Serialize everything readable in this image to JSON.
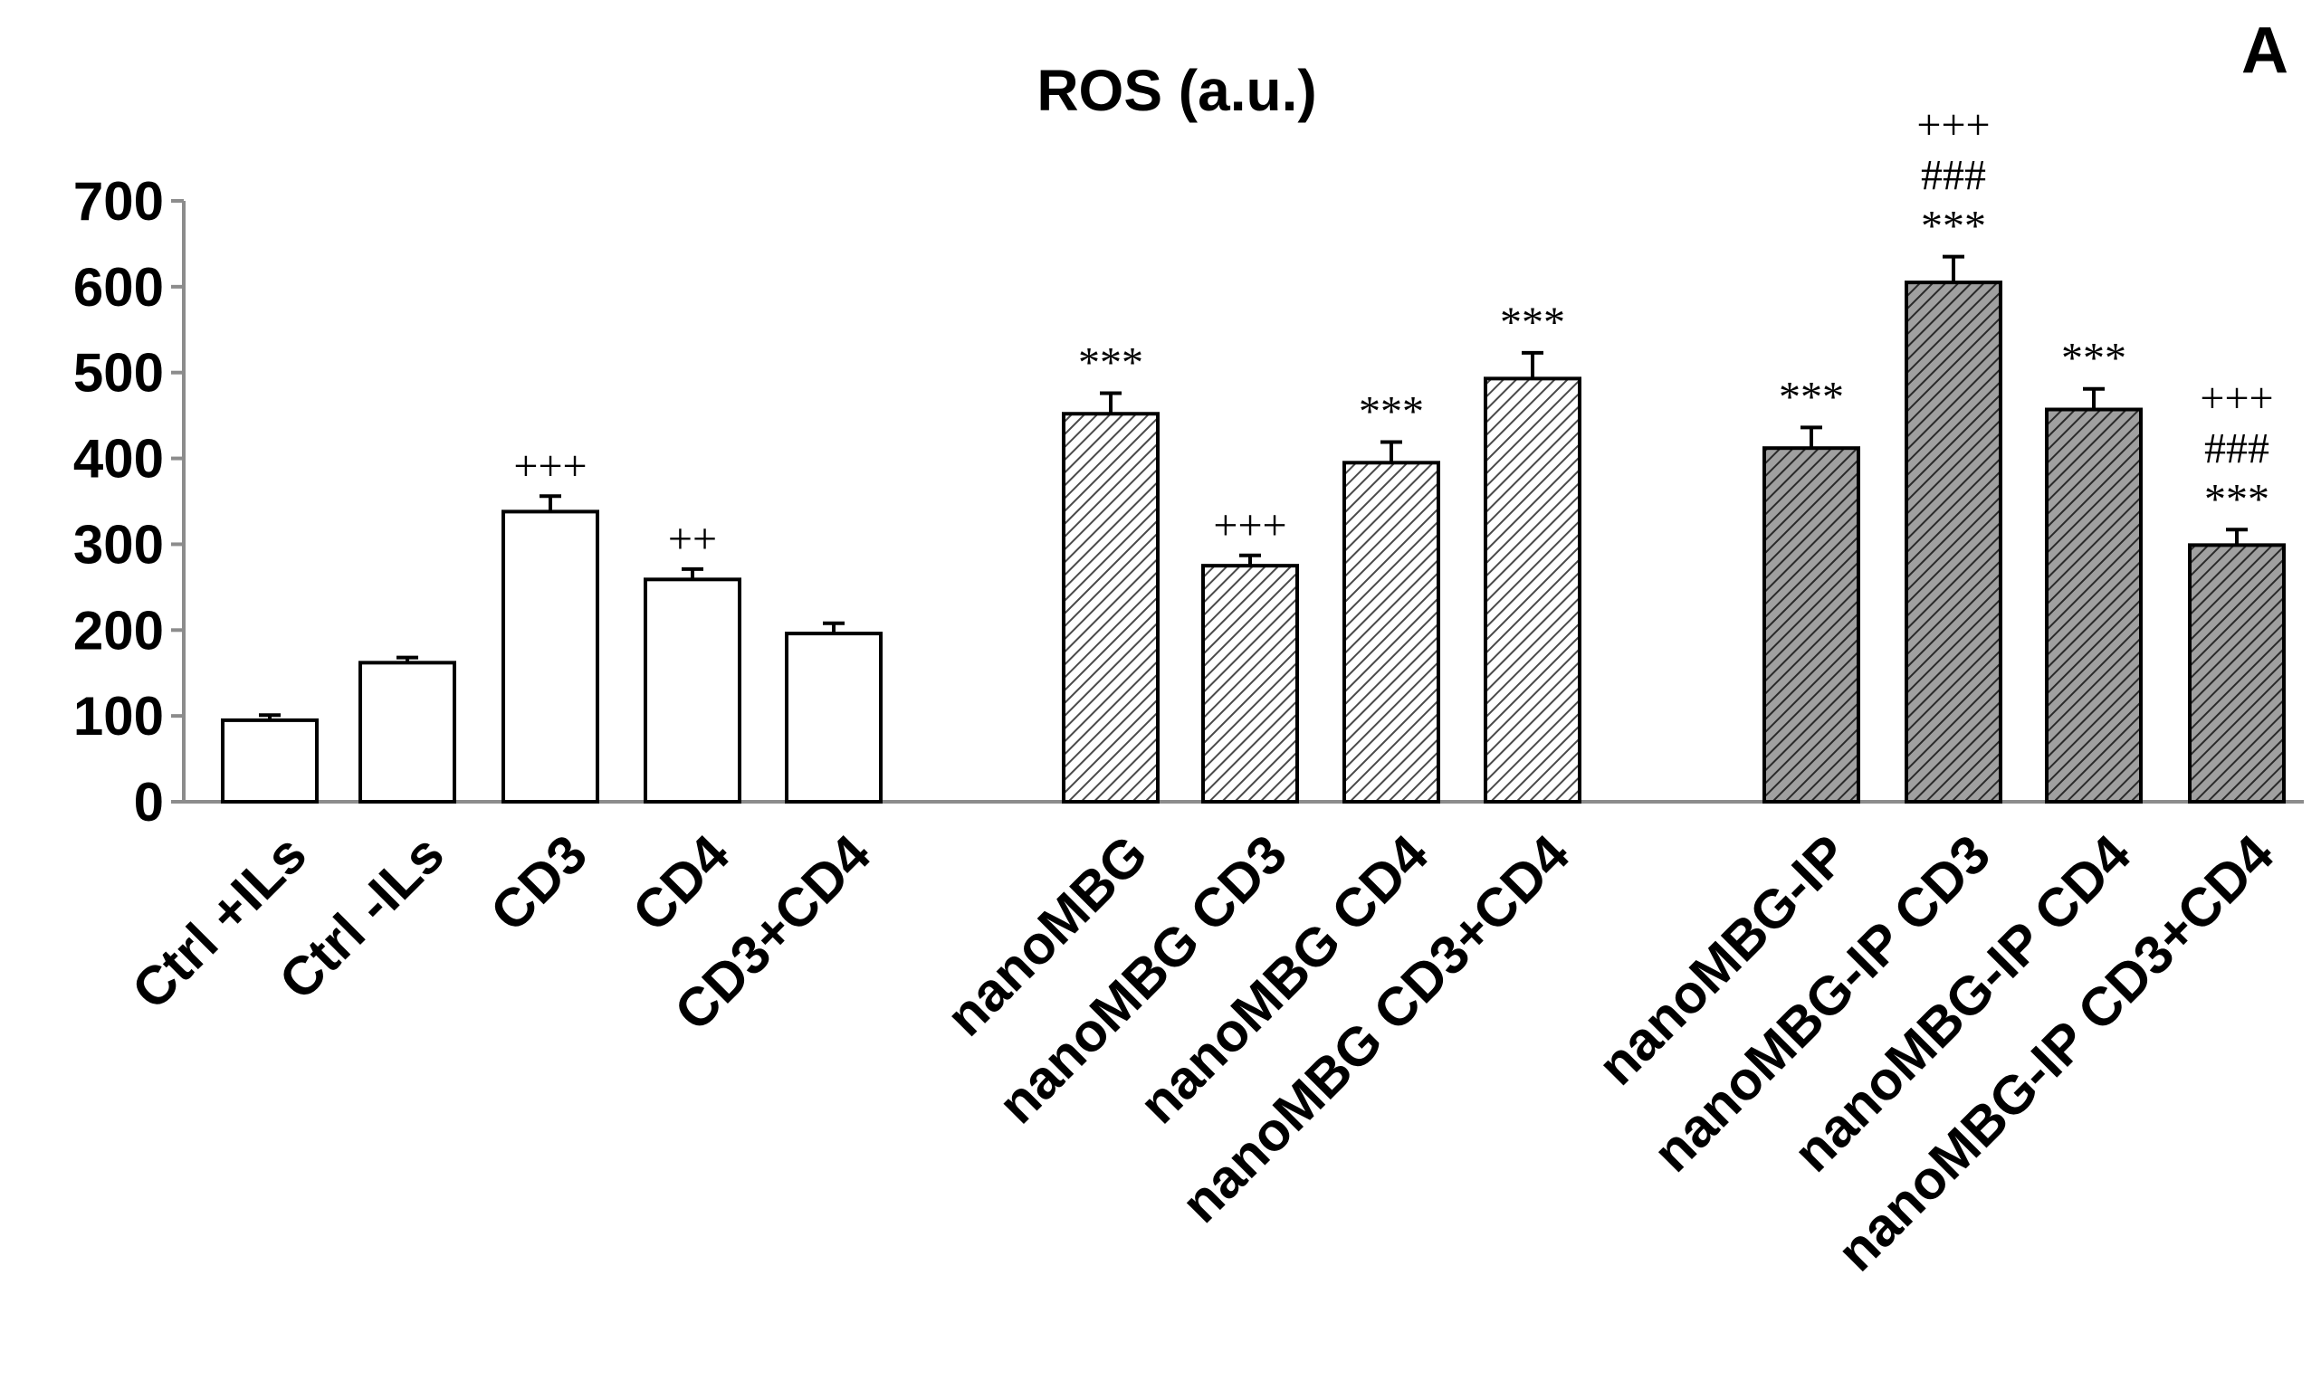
{
  "panel_label": "A",
  "chart_data": {
    "type": "bar",
    "title": "ROS (a.u.)",
    "xlabel": "",
    "ylabel": "",
    "ylim": [
      0,
      700
    ],
    "yticks": [
      0,
      100,
      200,
      300,
      400,
      500,
      600,
      700
    ],
    "grid": false,
    "legend": "none",
    "categories": [
      "Ctrl +ILs",
      "Ctrl -ILs",
      "CD3",
      "CD4",
      "CD3+CD4",
      "nanoMBG",
      "nanoMBG CD3",
      "nanoMBG CD4",
      "nanoMBG CD3+CD4",
      "nanoMBG-IP",
      "nanoMBG-IP CD3",
      "nanoMBG-IP CD4",
      "nanoMBG-IP CD3+CD4"
    ],
    "values": [
      95,
      162,
      338,
      259,
      196,
      452,
      275,
      395,
      493,
      412,
      605,
      457,
      299
    ],
    "errors": [
      6,
      6,
      18,
      12,
      12,
      24,
      12,
      24,
      30,
      24,
      30,
      24,
      18
    ],
    "groups": [
      "control",
      "control",
      "control",
      "control",
      "control",
      "nanoMBG",
      "nanoMBG",
      "nanoMBG",
      "nanoMBG",
      "nanoMBG-IP",
      "nanoMBG-IP",
      "nanoMBG-IP",
      "nanoMBG-IP"
    ],
    "annotations": [
      [],
      [],
      [
        "+++"
      ],
      [
        "++"
      ],
      [],
      [
        "***"
      ],
      [
        "+++"
      ],
      [
        "***"
      ],
      [
        "***"
      ],
      [
        "***"
      ],
      [
        "+++",
        "###",
        "***"
      ],
      [
        "***"
      ],
      [
        "+++",
        "###",
        "***"
      ]
    ],
    "group_styles": {
      "control": {
        "fill": "#ffffff",
        "hatch": "none"
      },
      "nanoMBG": {
        "fill": "#ffffff",
        "hatch": "#555555"
      },
      "nanoMBG-IP": {
        "fill": "#9a9a9a",
        "hatch": "#222222"
      }
    }
  }
}
